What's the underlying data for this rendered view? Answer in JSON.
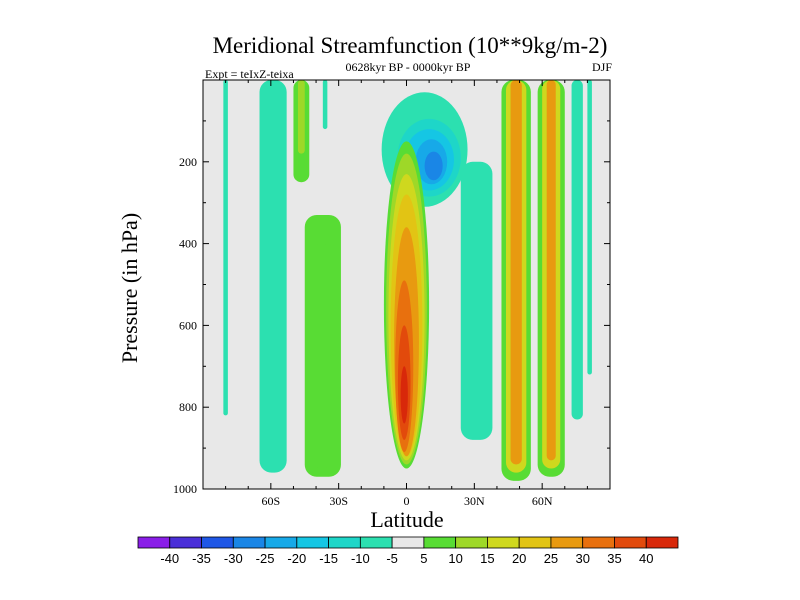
{
  "chart_data": {
    "type": "heatmap",
    "title": "Meridional Streamfunction (10**9kg/m-2)",
    "subtitle_left": "Expt = teIxZ-teixa",
    "subtitle_center": "0628kyr BP - 0000kyr BP",
    "subtitle_right": "DJF",
    "xlabel": "Latitude",
    "ylabel": "Pressure (in hPa)",
    "xlim": [
      -90,
      90
    ],
    "ylim": [
      1000,
      0
    ],
    "x_ticks": [
      {
        "value": -60,
        "label": "60S"
      },
      {
        "value": -30,
        "label": "30S"
      },
      {
        "value": 0,
        "label": "0"
      },
      {
        "value": 30,
        "label": "30N"
      },
      {
        "value": 60,
        "label": "60N"
      }
    ],
    "y_ticks": [
      {
        "value": 200,
        "label": "200"
      },
      {
        "value": 400,
        "label": "400"
      },
      {
        "value": 600,
        "label": "600"
      },
      {
        "value": 800,
        "label": "800"
      },
      {
        "value": 1000,
        "label": "1000"
      }
    ],
    "colorbar": {
      "labels": [
        "-40",
        "-35",
        "-30",
        "-25",
        "-20",
        "-15",
        "-10",
        "-5",
        "5",
        "10",
        "15",
        "20",
        "25",
        "30",
        "35",
        "40"
      ],
      "colors": [
        "#8a1ee8",
        "#4a2fd8",
        "#1f57e6",
        "#1a86e6",
        "#17a9e8",
        "#15c6e4",
        "#1ed6c8",
        "#2ce0b0",
        "#e8e8e8",
        "#58dc34",
        "#9ed828",
        "#cfd81e",
        "#e2c414",
        "#e89a10",
        "#e8700e",
        "#e24a0c",
        "#d8280a"
      ],
      "background_color": "#e8e8e8"
    },
    "features": [
      {
        "name": "nh-hadley-core",
        "level": 40,
        "lat": [
          -6,
          14
        ],
        "p": [
          100,
          980
        ]
      },
      {
        "name": "sh-upper-negative-cell",
        "level": -25,
        "lat": [
          -8,
          22
        ],
        "p": [
          40,
          300
        ]
      },
      {
        "name": "sh-midlat-positive-band",
        "level": 10,
        "lat": [
          -45,
          -30
        ],
        "p": [
          330,
          970
        ]
      },
      {
        "name": "sh-highlat-negative-band",
        "level": -5,
        "lat": [
          -65,
          -55
        ],
        "p": [
          0,
          960
        ]
      },
      {
        "name": "nh-midlat-positive-band",
        "level": 25,
        "lat": [
          45,
          52
        ],
        "p": [
          0,
          980
        ]
      },
      {
        "name": "nh-subpolar-positive-band",
        "level": 25,
        "lat": [
          60,
          68
        ],
        "p": [
          0,
          960
        ]
      },
      {
        "name": "nh-subtropical-negative-band",
        "level": -5,
        "lat": [
          26,
          36
        ],
        "p": [
          200,
          880
        ]
      }
    ]
  }
}
